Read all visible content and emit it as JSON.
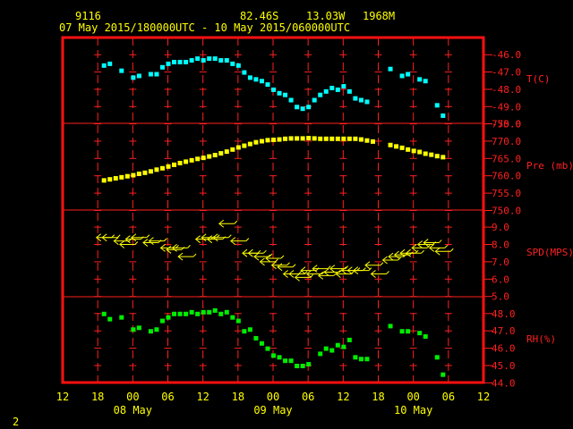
{
  "header": {
    "station": "9116",
    "lat": "82.46S",
    "lon": "13.03W",
    "elev": "1968M",
    "period": "07 May 2015/180000UTC - 10 May 2015/060000UTC"
  },
  "footer": {
    "page_number": "2"
  },
  "colors": {
    "frame": "#ff1010",
    "grid": "#ff2020",
    "labels": "#ff2020",
    "text": "#ffff00",
    "temperature": "#00ffff",
    "pressure": "#ffff00",
    "wind": "#ffff00",
    "humidity": "#00ee00"
  },
  "chart_data": {
    "type": "scatter",
    "x_unit": "hours since 07 May 2015 12:00 UTC",
    "x_range": [
      0,
      72
    ],
    "x_ticks": [
      {
        "x": 0,
        "label": "12"
      },
      {
        "x": 6,
        "label": "18"
      },
      {
        "x": 12,
        "label": "00"
      },
      {
        "x": 18,
        "label": "06"
      },
      {
        "x": 24,
        "label": "12"
      },
      {
        "x": 30,
        "label": "18"
      },
      {
        "x": 36,
        "label": "00"
      },
      {
        "x": 42,
        "label": "06"
      },
      {
        "x": 48,
        "label": "12"
      },
      {
        "x": 54,
        "label": "18"
      },
      {
        "x": 60,
        "label": "00"
      },
      {
        "x": 66,
        "label": "06"
      },
      {
        "x": 72,
        "label": "12"
      }
    ],
    "day_labels": [
      {
        "x": 12,
        "label": "08 May"
      },
      {
        "x": 36,
        "label": "09 May"
      },
      {
        "x": 60,
        "label": "10 May"
      }
    ],
    "panels": [
      {
        "name": "T(C)",
        "marker": "square",
        "color": "#00ffff",
        "ylim": [
          -50.0,
          -45.0
        ],
        "yticks": [
          -46.0,
          -47.0,
          -48.0,
          -49.0,
          -50.0
        ],
        "tick_labels": [
          "-46.0",
          "-47.0",
          "-48.0",
          "-49.0",
          "-50.0"
        ],
        "x": [
          7,
          8,
          10,
          12,
          13,
          15,
          16,
          17,
          18,
          19,
          20,
          21,
          22,
          23,
          24,
          25,
          26,
          27,
          28,
          29,
          30,
          31,
          32,
          33,
          34,
          35,
          36,
          37,
          38,
          39,
          40,
          41,
          42,
          43,
          44,
          45,
          46,
          47,
          48,
          49,
          50,
          51,
          52,
          56,
          58,
          59,
          61,
          62,
          64,
          65
        ],
        "y": [
          -46.6,
          -46.5,
          -46.9,
          -47.3,
          -47.2,
          -47.1,
          -47.1,
          -46.7,
          -46.5,
          -46.4,
          -46.4,
          -46.4,
          -46.3,
          -46.2,
          -46.3,
          -46.2,
          -46.2,
          -46.3,
          -46.3,
          -46.5,
          -46.6,
          -47.0,
          -47.3,
          -47.4,
          -47.5,
          -47.7,
          -48.0,
          -48.2,
          -48.3,
          -48.6,
          -49.0,
          -49.1,
          -49.0,
          -48.6,
          -48.3,
          -48.1,
          -47.9,
          -48.0,
          -47.8,
          -48.1,
          -48.5,
          -48.6,
          -48.7,
          -46.8,
          -47.2,
          -47.1,
          -47.4,
          -47.5,
          -48.9,
          -49.5
        ]
      },
      {
        "name": "Pre (mb)",
        "marker": "square",
        "color": "#ffff00",
        "ylim": [
          750.0,
          775.0
        ],
        "yticks": [
          750.0,
          755.0,
          760.0,
          765.0,
          770.0,
          775.0
        ],
        "tick_labels": [
          "750.0",
          "755.0",
          "760.0",
          "765.0",
          "770.0",
          "775.0"
        ],
        "x": [
          7,
          8,
          9,
          10,
          11,
          12,
          13,
          14,
          15,
          16,
          17,
          18,
          19,
          20,
          21,
          22,
          23,
          24,
          25,
          26,
          27,
          28,
          29,
          30,
          31,
          32,
          33,
          34,
          35,
          36,
          37,
          38,
          39,
          40,
          41,
          42,
          43,
          44,
          45,
          46,
          47,
          48,
          49,
          50,
          51,
          52,
          53,
          56,
          57,
          58,
          59,
          60,
          61,
          62,
          63,
          64,
          65
        ],
        "y": [
          758.8,
          759.1,
          759.4,
          759.7,
          760.0,
          760.3,
          760.7,
          761.0,
          761.4,
          761.9,
          762.3,
          762.8,
          763.3,
          763.8,
          764.2,
          764.6,
          765.0,
          765.3,
          765.7,
          766.1,
          766.6,
          767.1,
          767.7,
          768.3,
          768.8,
          769.3,
          769.8,
          770.1,
          770.4,
          770.5,
          770.6,
          770.8,
          770.9,
          770.9,
          770.9,
          771.0,
          770.9,
          770.8,
          770.8,
          770.8,
          770.8,
          770.8,
          770.8,
          770.8,
          770.6,
          770.3,
          770.0,
          769.0,
          768.6,
          768.2,
          767.7,
          767.3,
          767.0,
          766.5,
          766.2,
          765.8,
          765.5
        ]
      },
      {
        "name": "SPD(MPS)",
        "marker": "wind-arrow",
        "color": "#ffff00",
        "ylim": [
          5.0,
          10.0
        ],
        "yticks": [
          5.0,
          6.0,
          7.0,
          8.0,
          9.0
        ],
        "tick_labels": [
          "5.0",
          "6.0",
          "7.0",
          "8.0",
          "9.0"
        ],
        "x": [
          7,
          8,
          10,
          11,
          12,
          13,
          15,
          16,
          18,
          19,
          20,
          21,
          24,
          25,
          26,
          27,
          28,
          30,
          32,
          33,
          34,
          35,
          36,
          37,
          38,
          39,
          40,
          41,
          42,
          43,
          44,
          45,
          46,
          47,
          48,
          49,
          50,
          51,
          53,
          54,
          56,
          57,
          58,
          59,
          60,
          61,
          62,
          63,
          64,
          65
        ],
        "y": [
          8.4,
          8.4,
          8.2,
          8.0,
          8.3,
          8.4,
          8.1,
          8.2,
          7.8,
          7.7,
          7.8,
          7.3,
          8.3,
          8.4,
          8.3,
          8.4,
          9.2,
          8.2,
          7.5,
          7.5,
          7.3,
          7.0,
          7.2,
          6.8,
          6.7,
          6.3,
          6.3,
          6.1,
          6.5,
          6.3,
          6.6,
          6.2,
          6.4,
          6.6,
          6.3,
          6.5,
          6.5,
          6.5,
          6.8,
          6.3,
          7.1,
          7.3,
          7.4,
          7.5,
          7.5,
          7.8,
          8.0,
          8.1,
          7.8,
          7.6
        ]
      },
      {
        "name": "RH(%)",
        "marker": "square",
        "color": "#00ee00",
        "ylim": [
          44.0,
          49.0
        ],
        "yticks": [
          44.0,
          45.0,
          46.0,
          47.0,
          48.0
        ],
        "tick_labels": [
          "44.0",
          "45.0",
          "46.0",
          "47.0",
          "48.0"
        ],
        "x": [
          7,
          8,
          10,
          12,
          13,
          15,
          16,
          17,
          18,
          19,
          20,
          21,
          22,
          23,
          24,
          25,
          26,
          27,
          28,
          29,
          30,
          31,
          32,
          33,
          34,
          35,
          36,
          37,
          38,
          39,
          40,
          41,
          42,
          44,
          45,
          46,
          47,
          48,
          49,
          50,
          51,
          52,
          56,
          58,
          59,
          61,
          62,
          64,
          65
        ],
        "y": [
          48.0,
          47.7,
          47.8,
          47.1,
          47.2,
          47.0,
          47.1,
          47.6,
          47.8,
          48.0,
          48.0,
          48.0,
          48.1,
          48.0,
          48.1,
          48.1,
          48.2,
          48.0,
          48.1,
          47.8,
          47.6,
          47.0,
          47.1,
          46.6,
          46.3,
          46.0,
          45.6,
          45.5,
          45.3,
          45.3,
          45.0,
          45.0,
          45.1,
          45.7,
          46.0,
          45.9,
          46.2,
          46.1,
          46.5,
          45.5,
          45.4,
          45.4,
          47.3,
          47.0,
          47.0,
          46.9,
          46.7,
          45.5,
          44.5
        ]
      }
    ]
  }
}
